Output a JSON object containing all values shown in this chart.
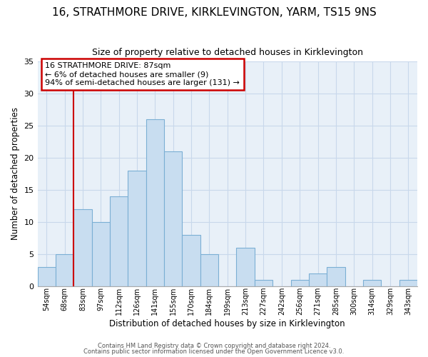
{
  "title1": "16, STRATHMORE DRIVE, KIRKLEVINGTON, YARM, TS15 9NS",
  "title2": "Size of property relative to detached houses in Kirklevington",
  "xlabel": "Distribution of detached houses by size in Kirklevington",
  "ylabel": "Number of detached properties",
  "bin_labels": [
    "54sqm",
    "68sqm",
    "83sqm",
    "97sqm",
    "112sqm",
    "126sqm",
    "141sqm",
    "155sqm",
    "170sqm",
    "184sqm",
    "199sqm",
    "213sqm",
    "227sqm",
    "242sqm",
    "256sqm",
    "271sqm",
    "285sqm",
    "300sqm",
    "314sqm",
    "329sqm",
    "343sqm"
  ],
  "bar_heights": [
    3,
    5,
    12,
    10,
    14,
    18,
    26,
    21,
    8,
    5,
    0,
    6,
    1,
    0,
    1,
    2,
    3,
    0,
    1,
    0,
    1
  ],
  "bar_color": "#c8ddf0",
  "bar_edge_color": "#7bafd4",
  "grid_color": "#c8d8eb",
  "background_color": "#ffffff",
  "plot_bg_color": "#e8f0f8",
  "vline_color": "#cc0000",
  "annotation_line1": "16 STRATHMORE DRIVE: 87sqm",
  "annotation_line2": "← 6% of detached houses are smaller (9)",
  "annotation_line3": "94% of semi-detached houses are larger (131) →",
  "annotation_box_color": "#cc0000",
  "footer1": "Contains HM Land Registry data © Crown copyright and database right 2024.",
  "footer2": "Contains public sector information licensed under the Open Government Licence v3.0.",
  "ylim": [
    0,
    35
  ],
  "yticks": [
    0,
    5,
    10,
    15,
    20,
    25,
    30,
    35
  ],
  "vline_bin_index": 2,
  "title1_fontsize": 11,
  "title2_fontsize": 9
}
